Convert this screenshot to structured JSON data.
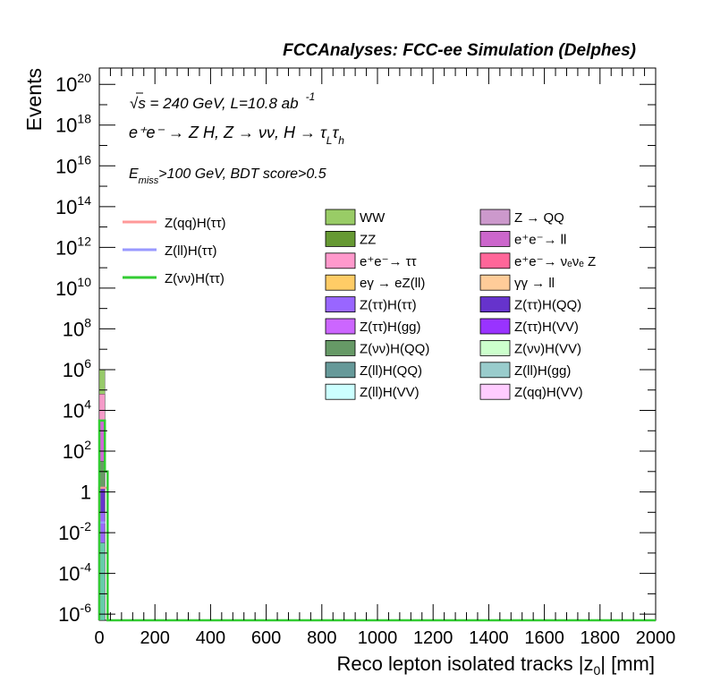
{
  "header": {
    "title": "FCCAnalyses: FCC-ee Simulation (Delphes)"
  },
  "annotations": {
    "energy_line": "√s = 240 GeV, L=10.8 ab",
    "energy_sup": "-1",
    "process": "e⁺e⁻ → Z H, Z → νν, H → τ",
    "process_tau_l_sub": "L",
    "process_tau_h": "τ",
    "process_tau_h_sub": "h",
    "cuts_prefix": "E",
    "cuts_sub": "miss",
    "cuts_rest": ">100 GeV, BDT score>0.5"
  },
  "chart_data": {
    "type": "bar",
    "title": "",
    "xlabel": "Reco lepton isolated tracks |z",
    "xlabel_sub": "0",
    "xlabel_unit": "| [mm]",
    "ylabel": "Events",
    "xlim": [
      0,
      2000
    ],
    "ylim_log10": [
      -6.3,
      20.8
    ],
    "y_scale": "log",
    "x_ticks": [
      "0",
      "200",
      "400",
      "600",
      "800",
      "1000",
      "1200",
      "1400",
      "1600",
      "1800",
      "2000"
    ],
    "y_ticks": [
      {
        "base": "10",
        "exp": "20",
        "log": 20
      },
      {
        "base": "10",
        "exp": "18",
        "log": 18
      },
      {
        "base": "10",
        "exp": "16",
        "log": 16
      },
      {
        "base": "10",
        "exp": "14",
        "log": 14
      },
      {
        "base": "10",
        "exp": "12",
        "log": 12
      },
      {
        "base": "10",
        "exp": "10",
        "log": 10
      },
      {
        "base": "10",
        "exp": "8",
        "log": 8
      },
      {
        "base": "10",
        "exp": "6",
        "log": 6
      },
      {
        "base": "10",
        "exp": "4",
        "log": 4
      },
      {
        "base": "10",
        "exp": "2",
        "log": 2
      },
      {
        "base": "1",
        "exp": "",
        "log": 0
      },
      {
        "base": "10",
        "exp": "-2",
        "log": -2
      },
      {
        "base": "10",
        "exp": "-4",
        "log": -4
      },
      {
        "base": "10",
        "exp": "-6",
        "log": -6
      }
    ],
    "stack_bars": [
      {
        "x": 0,
        "width": 20,
        "log_top": 6.0,
        "color": "#97ca6a",
        "name": "WW"
      },
      {
        "x": 0,
        "width": 20,
        "log_top": 4.8,
        "color": "#f49ac8",
        "name": "e+e- → ττ"
      },
      {
        "x": 0,
        "width": 20,
        "log_top": 3.5,
        "color": "#d166d6",
        "name": "e+e- → ll"
      },
      {
        "x": 0,
        "width": 20,
        "log_top": 1.5,
        "color": "#6a9a66",
        "name": "Z(νν)H(QQ)"
      },
      {
        "x": 0,
        "width": 20,
        "log_top": 0.2,
        "color": "#6633cc",
        "name": "Z(ττ)H(QQ)"
      },
      {
        "x": 0,
        "width": 20,
        "log_top": -1.0,
        "color": "#9966ff",
        "name": "Z(ττ)H(ττ)"
      },
      {
        "x": 0,
        "width": 20,
        "log_top": -2.5,
        "color": "#66ccaa",
        "name": "Z(ll)H(gg)"
      }
    ],
    "line_series": [
      {
        "name": "Z(qq)H(ττ)",
        "color": "#ff9999",
        "steps": [
          [
            0,
            20,
            0.2
          ],
          [
            20,
            30,
            0.2
          ]
        ]
      },
      {
        "name": "Z(ll)H(ττ)",
        "color": "#9999ff",
        "steps": [
          [
            0,
            20,
            -1.5
          ]
        ]
      },
      {
        "name": "Z(νν)H(ττ)",
        "color": "#33cc33",
        "steps": [
          [
            0,
            20,
            3.5
          ],
          [
            20,
            30,
            1.0
          ],
          [
            30,
            2000,
            -6.3
          ]
        ]
      }
    ]
  },
  "legend": {
    "lines": [
      {
        "label": "Z(qq)H(ττ)",
        "color": "#ff9999"
      },
      {
        "label": "Z(ll)H(ττ)",
        "color": "#9999ff"
      },
      {
        "label": "Z(νν)H(ττ)",
        "color": "#33cc33"
      }
    ],
    "boxes_col1": [
      {
        "label": "WW",
        "color": "#99cc66"
      },
      {
        "label": "ZZ",
        "color": "#669933"
      },
      {
        "label": "e⁺e⁻→ ττ",
        "color": "#ff99cc"
      },
      {
        "label": "eγ → eZ(ll)",
        "color": "#ffcc66"
      },
      {
        "label": "Z(ττ)H(ττ)",
        "color": "#9966ff"
      },
      {
        "label": "Z(ττ)H(gg)",
        "color": "#cc66ff"
      },
      {
        "label": "Z(νν)H(QQ)",
        "color": "#669966"
      },
      {
        "label": "Z(ll)H(QQ)",
        "color": "#669999"
      },
      {
        "label": "Z(ll)H(VV)",
        "color": "#ccffff"
      }
    ],
    "boxes_col2": [
      {
        "label": "Z → QQ",
        "color": "#cc99cc"
      },
      {
        "label": "e⁺e⁻→ ll",
        "color": "#cc66cc"
      },
      {
        "label": "e⁺e⁻→ νₑνₑ Z",
        "color": "#ff6699"
      },
      {
        "label": "γγ → ll",
        "color": "#ffcc99"
      },
      {
        "label": "Z(ττ)H(QQ)",
        "color": "#6633cc"
      },
      {
        "label": "Z(ττ)H(VV)",
        "color": "#9933ff"
      },
      {
        "label": "Z(νν)H(VV)",
        "color": "#ccffcc"
      },
      {
        "label": "Z(ll)H(gg)",
        "color": "#99cccc"
      },
      {
        "label": "Z(qq)H(VV)",
        "color": "#ffccff"
      }
    ]
  }
}
